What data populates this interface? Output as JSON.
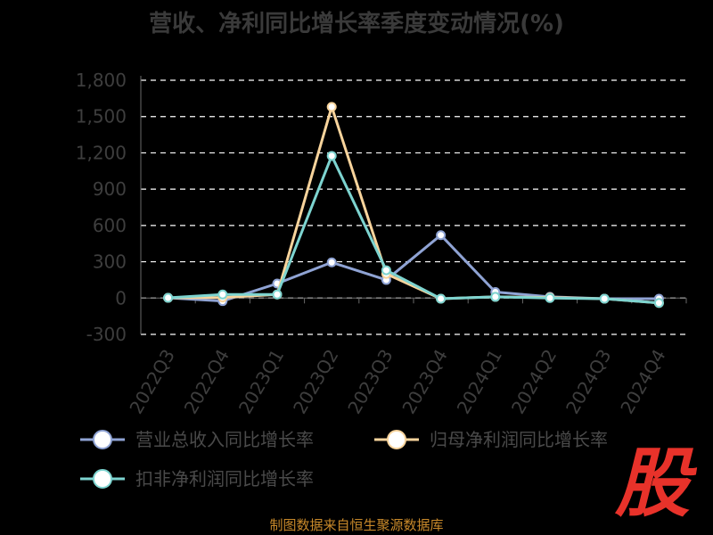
{
  "chart_data": {
    "type": "line",
    "title": "营收、净利同比增长率季度变动情况(%)",
    "categories": [
      "2022Q3",
      "2022Q4",
      "2023Q1",
      "2023Q2",
      "2023Q3",
      "2023Q4",
      "2024Q1",
      "2024Q2",
      "2024Q3",
      "2024Q4"
    ],
    "series": [
      {
        "name": "营业总收入同比增长率",
        "color": "#8fa3d4",
        "values": [
          2,
          -25,
          120,
          295,
          150,
          520,
          50,
          10,
          -5,
          -5
        ]
      },
      {
        "name": "归母净利润同比增长率",
        "color": "#f8d49c",
        "values": [
          2,
          5,
          30,
          1580,
          200,
          -5,
          10,
          5,
          -5,
          -40
        ]
      },
      {
        "name": "扣非净利润同比增长率",
        "color": "#7dd4d0",
        "values": [
          2,
          30,
          30,
          1175,
          230,
          -5,
          10,
          0,
          -5,
          -40
        ]
      }
    ],
    "yticks": [
      "1,800",
      "1,500",
      "1,200",
      "900",
      "600",
      "300",
      "0",
      "-300"
    ],
    "ylim": [
      -300,
      1800
    ],
    "grid": true,
    "legend_position": "bottom-left"
  },
  "source": "制图数据来自恒生聚源数据库",
  "logo_text": "股"
}
